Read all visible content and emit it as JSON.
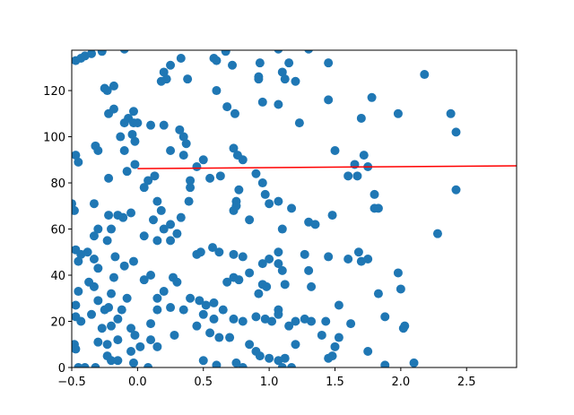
{
  "chart_data": {
    "type": "scatter",
    "color": "#1f77b4",
    "x": [
      -0.47,
      -0.43,
      -0.4,
      -0.35,
      -0.27,
      -0.1,
      -0.25,
      -0.23,
      -0.18,
      -0.22,
      -0.18,
      -0.1,
      -0.07,
      -0.03,
      -0.03,
      0.0,
      -0.13,
      -0.04,
      -0.02,
      -0.32,
      -0.3,
      -0.1,
      -0.47,
      -0.45,
      -0.02,
      -0.08,
      -0.22,
      -0.5,
      -0.48,
      -0.33,
      -0.22,
      -0.15,
      -0.11,
      -0.05,
      -0.3,
      -0.33,
      -0.2,
      -0.23,
      -0.47,
      -0.43,
      -0.45,
      -0.38,
      -0.33,
      -0.17,
      -0.1,
      -0.03,
      -0.3,
      -0.37,
      -0.33,
      -0.18,
      -0.2,
      -0.08,
      -0.45,
      -0.47,
      -0.3,
      -0.25,
      -0.12,
      -0.22,
      -0.35,
      -0.47,
      -0.43,
      -0.27,
      -0.2,
      -0.15,
      -0.05,
      -0.02,
      -0.23,
      -0.3,
      -0.15,
      -0.48,
      -0.47,
      -0.23,
      -0.2,
      -0.15,
      -0.05,
      0.02,
      -0.4,
      -0.45,
      -0.32,
      0.2,
      0.22,
      0.18,
      0.25,
      0.33,
      0.38,
      0.58,
      0.6,
      0.67,
      0.72,
      0.6,
      0.68,
      0.74,
      0.93,
      0.92,
      0.92,
      1.07,
      1.1,
      1.12,
      1.15,
      1.2,
      1.3,
      0.1,
      0.2,
      0.32,
      0.35,
      0.37,
      0.25,
      0.35,
      0.45,
      0.5,
      0.73,
      0.76,
      0.8,
      0.95,
      1.07,
      1.23,
      0.05,
      0.08,
      0.13,
      0.15,
      0.18,
      0.12,
      0.2,
      0.25,
      0.3,
      0.33,
      0.39,
      0.4,
      0.4,
      0.55,
      0.63,
      0.77,
      0.75,
      0.75,
      0.73,
      0.85,
      0.9,
      0.95,
      0.97,
      1.0,
      1.07,
      1.1,
      1.17,
      0.05,
      0.15,
      0.25,
      0.45,
      0.48,
      0.57,
      0.62,
      0.73,
      0.8,
      0.85,
      0.95,
      1.0,
      1.07,
      1.07,
      1.1,
      1.12,
      0.05,
      0.1,
      0.15,
      0.2,
      0.27,
      0.3,
      0.4,
      0.47,
      0.52,
      0.58,
      0.68,
      0.73,
      0.77,
      0.92,
      0.95,
      0.98,
      1.07,
      1.07,
      0.1,
      0.15,
      0.25,
      0.35,
      0.45,
      0.5,
      0.58,
      0.65,
      0.73,
      0.8,
      0.9,
      0.97,
      1.02,
      1.15,
      1.2,
      0.1,
      0.15,
      0.28,
      0.55,
      0.62,
      0.7,
      0.85,
      0.9,
      0.93,
      1.0,
      1.07,
      1.12,
      1.2,
      0.5,
      0.6,
      0.75,
      0.8,
      1.1,
      1.17,
      0.08,
      -0.03,
      1.45,
      1.45,
      1.7,
      1.78,
      1.98,
      2.18,
      2.38,
      2.42,
      2.42,
      2.28,
      1.5,
      1.6,
      1.65,
      1.67,
      1.72,
      1.75,
      1.8,
      1.8,
      1.83,
      1.3,
      1.35,
      1.48,
      1.6,
      1.68,
      1.7,
      1.75,
      1.83,
      1.98,
      2.0,
      1.27,
      1.3,
      1.32,
      1.45,
      1.53,
      1.32,
      1.43,
      1.62,
      1.88,
      1.45,
      1.48,
      1.5,
      1.53,
      1.4,
      1.75,
      1.88,
      2.02,
      2.03,
      2.1,
      1.27
    ],
    "values": [
      133,
      134,
      135,
      136,
      137,
      138,
      121,
      120,
      122,
      110,
      112,
      106,
      108,
      111,
      106,
      106,
      100,
      101,
      98,
      96,
      94,
      94,
      92,
      89,
      88,
      85,
      82,
      71,
      68,
      71,
      66,
      66,
      65,
      67,
      60,
      57,
      60,
      55,
      51,
      49,
      46,
      50,
      47,
      48,
      44,
      46,
      43,
      37,
      35,
      39,
      32,
      30,
      33,
      27,
      29,
      25,
      25,
      26,
      23,
      22,
      20,
      17,
      18,
      21,
      17,
      14,
      10,
      11,
      12,
      10,
      8,
      5,
      3,
      3,
      7,
      9,
      0,
      0,
      0,
      128,
      125,
      124,
      131,
      134,
      125,
      134,
      133,
      137,
      131,
      120,
      113,
      110,
      132,
      125,
      126,
      138,
      128,
      125,
      132,
      124,
      138,
      105,
      105,
      103,
      100,
      97,
      94,
      92,
      87,
      90,
      95,
      92,
      90,
      115,
      114,
      106,
      78,
      81,
      83,
      72,
      68,
      64,
      60,
      62,
      58,
      65,
      72,
      78,
      81,
      82,
      83,
      77,
      72,
      70,
      68,
      64,
      84,
      80,
      75,
      71,
      72,
      60,
      69,
      57,
      55,
      55,
      49,
      50,
      52,
      50,
      49,
      48,
      41,
      45,
      47,
      45,
      50,
      42,
      36,
      38,
      40,
      30,
      33,
      39,
      37,
      30,
      29,
      27,
      28,
      37,
      39,
      38,
      32,
      36,
      35,
      25,
      23,
      19,
      25,
      26,
      25,
      18,
      23,
      21,
      25,
      21,
      20,
      22,
      21,
      20,
      18,
      20,
      12,
      9,
      14,
      15,
      13,
      13,
      10,
      7,
      5,
      4,
      3,
      4,
      10,
      3,
      1,
      2,
      0,
      0,
      0,
      0,
      2,
      132,
      116,
      108,
      117,
      110,
      127,
      110,
      102,
      77,
      58,
      94,
      83,
      88,
      83,
      92,
      87,
      75,
      69,
      69,
      63,
      62,
      66,
      47,
      50,
      46,
      47,
      32,
      41,
      34,
      49,
      42,
      35,
      48,
      27,
      20,
      20,
      19,
      22,
      4,
      5,
      9,
      13,
      14,
      7,
      1,
      17,
      18,
      2,
      21
    ],
    "fit_line": {
      "x": [
        0,
        2.88
      ],
      "values": [
        86.2,
        87.4
      ],
      "color": "#ff0000"
    },
    "xlim": [
      -0.5,
      2.88
    ],
    "ylim": [
      0,
      137.5
    ],
    "xticks": [
      {
        "value": -0.5,
        "label": "−0.5"
      },
      {
        "value": 0,
        "label": "0.0"
      },
      {
        "value": 0.5,
        "label": "0.5"
      },
      {
        "value": 1,
        "label": "1.0"
      },
      {
        "value": 1.5,
        "label": "1.5"
      },
      {
        "value": 2,
        "label": "2.0"
      },
      {
        "value": 2.5,
        "label": "2.5"
      }
    ],
    "yticks": [
      0,
      20,
      40,
      60,
      80,
      100,
      120
    ]
  }
}
